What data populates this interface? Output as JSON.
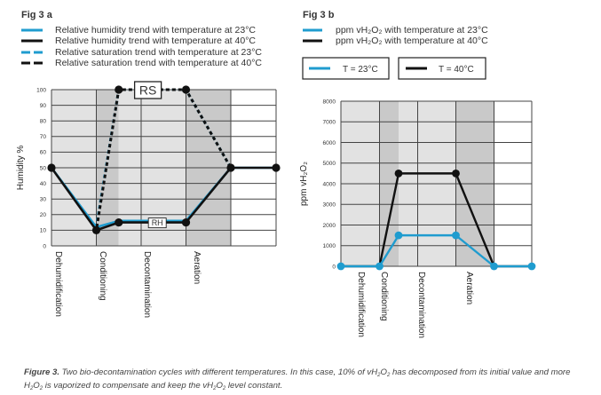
{
  "colors": {
    "blue": "#1f9ccf",
    "black": "#111111",
    "bg_light": "#e2e2e2",
    "bg_dark": "#c9c9c9",
    "bg_white": "#ffffff",
    "grid": "#444444"
  },
  "caption": {
    "label": "Figure 3.",
    "text_html": " Two bio-decontamination cycles with different temperatures. In this case, 10% of vH<sub>2</sub>O<sub>2</sub> has decomposed from its initial value and more H<sub>2</sub>O<sub>2</sub> is vaporized to compensate and keep the vH<sub>2</sub>O<sub>2</sub> level constant."
  },
  "chart_data": [
    {
      "id": "fig3a",
      "type": "line",
      "title": "Fig 3 a",
      "ylabel": "Humidity %",
      "xlabel": "",
      "ylim": [
        0,
        100
      ],
      "yticks": [
        0,
        10,
        20,
        30,
        40,
        50,
        60,
        70,
        80,
        90,
        100
      ],
      "grid": true,
      "phases": [
        "Dehumidification",
        "Conditioning",
        "Decontamination",
        "Aeration",
        ""
      ],
      "phase_shading": [
        "light",
        "dark-then-light",
        "light",
        "dark",
        "white"
      ],
      "x": [
        0,
        1,
        1.5,
        3,
        4,
        5
      ],
      "legend": [
        {
          "label": "Relative humidity trend with temperature at 23°C",
          "color": "blue",
          "style": "solid"
        },
        {
          "label": "Relative humidity trend with temperature at 40°C",
          "color": "black",
          "style": "solid"
        },
        {
          "label": "Relative saturation trend with temperature at 23°C",
          "color": "blue",
          "style": "dashed"
        },
        {
          "label": "Relative saturation trend with temperature at 40°C",
          "color": "black",
          "style": "dashed"
        }
      ],
      "series": [
        {
          "name": "RH 23°C",
          "color": "blue",
          "style": "solid",
          "values": [
            50,
            12,
            16,
            16,
            50,
            50
          ]
        },
        {
          "name": "RH 40°C",
          "color": "black",
          "style": "solid",
          "values": [
            50,
            10,
            15,
            15,
            50,
            50
          ]
        },
        {
          "name": "RS 23°C",
          "color": "blue",
          "style": "dashed",
          "values": [
            null,
            12,
            100,
            100,
            50,
            null
          ]
        },
        {
          "name": "RS 40°C",
          "color": "black",
          "style": "dashed",
          "values": [
            null,
            10,
            100,
            100,
            50,
            null
          ]
        }
      ],
      "markers": {
        "x": [
          0,
          1,
          1.5,
          3,
          4,
          5
        ],
        "rh": [
          50,
          10,
          15,
          15,
          50,
          50
        ],
        "rs": [
          100,
          100
        ],
        "rs_x": [
          1.5,
          3
        ]
      },
      "annotations": [
        {
          "text": "RS",
          "x": 2.25,
          "y": 100
        },
        {
          "text": "RH",
          "x": 2.4,
          "y": 15
        }
      ]
    },
    {
      "id": "fig3b",
      "type": "line",
      "title": "Fig 3 b",
      "ylabel": "ppm vH₂O₂",
      "xlabel": "",
      "ylim": [
        0,
        8000
      ],
      "yticks": [
        0,
        1000,
        2000,
        3000,
        4000,
        5000,
        6000,
        7000,
        8000
      ],
      "grid": true,
      "phases": [
        "Dehumidification",
        "Conditioning",
        "Decontamination",
        "Aeration",
        ""
      ],
      "x": [
        0,
        1,
        1.5,
        3,
        4,
        5
      ],
      "legend": [
        {
          "label": "ppm vH₂O₂ with temperature at 23°C",
          "color": "blue"
        },
        {
          "label": "ppm vH₂O₂ with temperature at 40°C",
          "color": "black"
        }
      ],
      "box_legend": [
        {
          "label": "T = 23°C",
          "color": "blue"
        },
        {
          "label": "T = 40°C",
          "color": "black"
        }
      ],
      "series": [
        {
          "name": "T = 40°C",
          "color": "black",
          "values": [
            0,
            0,
            4500,
            4500,
            0,
            0
          ]
        },
        {
          "name": "T = 23°C",
          "color": "blue",
          "values": [
            0,
            0,
            1500,
            1500,
            0,
            0
          ]
        }
      ]
    }
  ]
}
